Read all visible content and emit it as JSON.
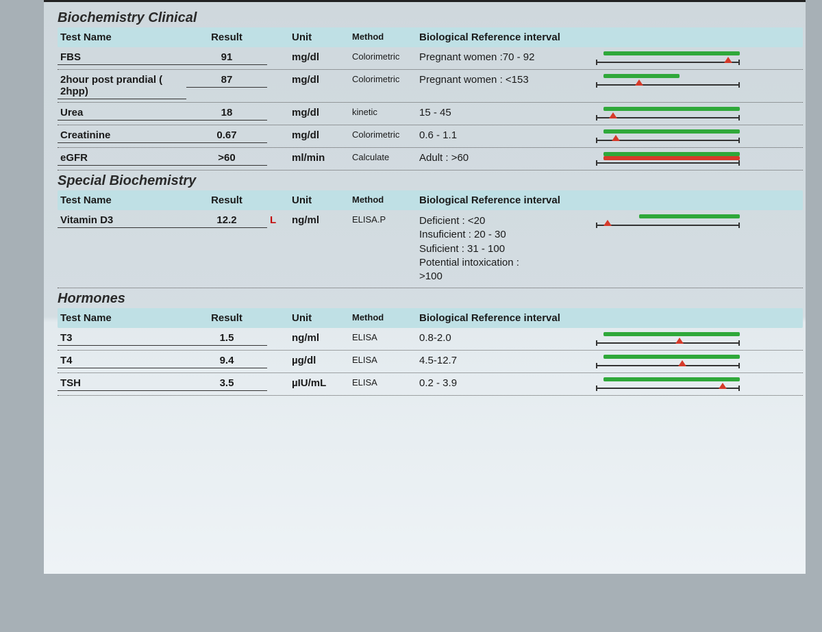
{
  "colors": {
    "header_bg": "#bfe0e5",
    "green": "#2fa83a",
    "red": "#d63a2a",
    "marker": "#d63a2a",
    "flag": "#c20808",
    "axis": "#333333"
  },
  "columns": {
    "name": "Test Name",
    "result": "Result",
    "unit": "Unit",
    "method": "Method",
    "reference": "Biological Reference interval"
  },
  "sections": [
    {
      "title": "Biochemistry Clinical",
      "rows": [
        {
          "name": "FBS",
          "result": "91",
          "flag": "",
          "unit": "mg/dl",
          "method": "Colorimetric",
          "reference": "Pregnant women :70 - 92",
          "bar": {
            "green_start": 5,
            "green_end": 100,
            "red_start": null,
            "red_end": null,
            "marker": 92
          }
        },
        {
          "name": "2hour post prandial ( 2hpp)",
          "result": "87",
          "flag": "",
          "unit": "mg/dl",
          "method": "Colorimetric",
          "reference": "Pregnant women : <153",
          "bar": {
            "green_start": 5,
            "green_end": 58,
            "red_start": null,
            "red_end": null,
            "marker": 30
          }
        },
        {
          "name": "Urea",
          "result": "18",
          "flag": "",
          "unit": "mg/dl",
          "method": "kinetic",
          "reference": "15 - 45",
          "bar": {
            "green_start": 5,
            "green_end": 100,
            "red_start": null,
            "red_end": null,
            "marker": 12
          }
        },
        {
          "name": "Creatinine",
          "result": "0.67",
          "flag": "",
          "unit": "mg/dl",
          "method": "Colorimetric",
          "reference": "0.6 - 1.1",
          "bar": {
            "green_start": 5,
            "green_end": 100,
            "red_start": null,
            "red_end": null,
            "marker": 14
          }
        },
        {
          "name": "eGFR",
          "result": ">60",
          "flag": "",
          "unit": "ml/min",
          "method": "Calculate",
          "reference": "Adult : >60",
          "bar": {
            "green_start": 5,
            "green_end": 100,
            "red_start": 5,
            "red_end": 100,
            "marker": null
          }
        }
      ]
    },
    {
      "title": "Special Biochemistry",
      "rows": [
        {
          "name": "Vitamin D3",
          "result": "12.2",
          "flag": "L",
          "unit": "ng/ml",
          "method": "ELISA.P",
          "reference": "Deficient : <20\nInsuficient : 20 - 30\nSuficient : 31 - 100\nPotential intoxication :\n>100",
          "bar": {
            "green_start": 30,
            "green_end": 100,
            "red_start": null,
            "red_end": null,
            "marker": 8
          }
        }
      ]
    },
    {
      "title": "Hormones",
      "rows": [
        {
          "name": "T3",
          "result": "1.5",
          "flag": "",
          "unit": "ng/ml",
          "method": "ELISA",
          "reference": "0.8-2.0",
          "bar": {
            "green_start": 5,
            "green_end": 100,
            "red_start": null,
            "red_end": null,
            "marker": 58
          }
        },
        {
          "name": "T4",
          "result": "9.4",
          "flag": "",
          "unit": "µg/dl",
          "method": "ELISA",
          "reference": "4.5-12.7",
          "bar": {
            "green_start": 5,
            "green_end": 100,
            "red_start": null,
            "red_end": null,
            "marker": 60
          }
        },
        {
          "name": "TSH",
          "result": "3.5",
          "flag": "",
          "unit": "µIU/mL",
          "method": "ELISA",
          "reference": "0.2 - 3.9",
          "bar": {
            "green_start": 5,
            "green_end": 100,
            "red_start": null,
            "red_end": null,
            "marker": 88
          }
        }
      ]
    }
  ]
}
